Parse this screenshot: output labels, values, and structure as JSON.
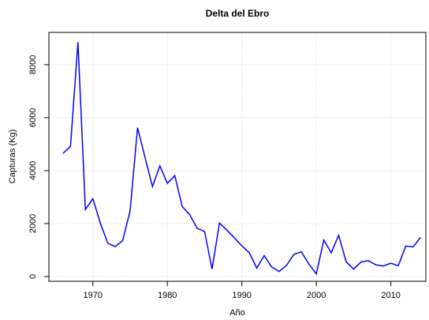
{
  "chart_data": {
    "type": "line",
    "title": "Delta del Ebro",
    "x_label": "Año",
    "y_label": "Capturas (Kg)",
    "x": [
      1966,
      1967,
      1968,
      1969,
      1970,
      1971,
      1972,
      1973,
      1974,
      1975,
      1976,
      1977,
      1978,
      1979,
      1980,
      1981,
      1982,
      1983,
      1984,
      1985,
      1986,
      1987,
      1988,
      1989,
      1990,
      1991,
      1992,
      1993,
      1994,
      1995,
      1996,
      1997,
      1998,
      1999,
      2000,
      2001,
      2002,
      2003,
      2004,
      2005,
      2006,
      2007,
      2008,
      2009,
      2010,
      2011,
      2012,
      2013,
      2014
    ],
    "values": [
      4650,
      4920,
      8850,
      2530,
      2940,
      2020,
      1260,
      1130,
      1350,
      2480,
      5620,
      4500,
      3400,
      4180,
      3520,
      3810,
      2640,
      2340,
      1820,
      1700,
      280,
      2020,
      1750,
      1460,
      1160,
      900,
      320,
      790,
      360,
      190,
      420,
      840,
      930,
      470,
      100,
      1380,
      900,
      1560,
      560,
      280,
      550,
      600,
      440,
      400,
      500,
      410,
      1150,
      1120,
      1480
    ],
    "color": "#0000ff",
    "xlim": [
      1964.1,
      2014.7
    ],
    "ylim": [
      -180,
      9220
    ],
    "xticks": [
      1970,
      1980,
      1990,
      2000,
      2010
    ],
    "yticks": [
      0,
      2000,
      4000,
      6000,
      8000
    ],
    "grid": true
  }
}
